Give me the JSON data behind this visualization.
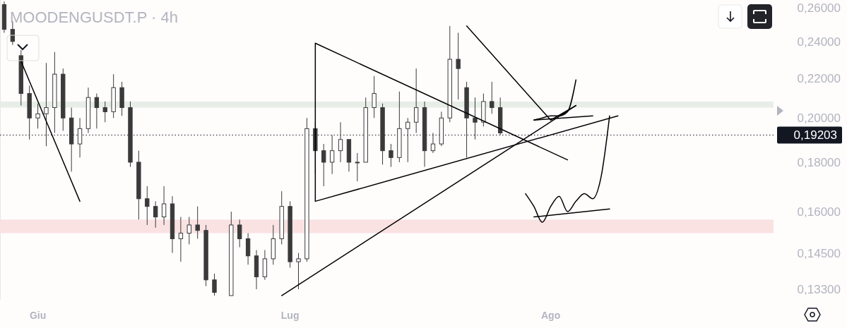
{
  "chart_data": {
    "type": "candlestick",
    "title": "MOODENGUSDT.P · 4h",
    "log": true,
    "grid": false,
    "categories": [
      null,
      null,
      null,
      null,
      "Giu",
      null,
      null,
      null,
      null,
      null,
      null,
      null,
      null,
      null,
      null,
      null,
      null,
      null,
      null,
      null,
      null,
      null,
      null,
      null,
      null,
      null,
      null,
      null,
      null,
      null,
      null,
      null,
      null,
      null,
      "Lug",
      null,
      null,
      null,
      null,
      null,
      null,
      null,
      null,
      null,
      null,
      null,
      null,
      null,
      null,
      null,
      null,
      null,
      null,
      null,
      null,
      null,
      null,
      null,
      null,
      null,
      null,
      null,
      null,
      null,
      null,
      "Ago",
      null,
      null,
      null,
      null,
      null,
      null,
      null,
      null,
      null,
      null,
      null,
      null,
      null,
      null,
      null,
      null,
      null,
      null,
      null,
      null,
      null,
      null,
      null,
      null,
      null,
      null
    ],
    "ylim": [
      0.1297,
      0.2649
    ],
    "yticks": [
      {
        "value": 0.133,
        "label": "0,13300"
      },
      {
        "value": 0.145,
        "label": "0,14500"
      },
      {
        "value": 0.16,
        "label": "0,16000"
      },
      {
        "value": 0.18,
        "label": "0,18000"
      },
      {
        "value": 0.2,
        "label": "0,20000"
      },
      {
        "value": 0.22,
        "label": "0,22000"
      },
      {
        "value": 0.24,
        "label": "0,24000"
      },
      {
        "value": 0.26,
        "label": "0,26000"
      }
    ],
    "series": [
      {
        "color": "#3a3a3a",
        "ohlc": [
          [
            0.262,
            0.264,
            0.245,
            0.247
          ],
          [
            0.247,
            0.252,
            0.238,
            0.24
          ],
          [
            0.232,
            0.235,
            0.206,
            0.212
          ],
          [
            0.212,
            0.216,
            0.19,
            0.2
          ],
          [
            0.2,
            0.207,
            0.195,
            0.202
          ],
          [
            0.202,
            0.228,
            0.187,
            0.205
          ],
          [
            0.205,
            0.234,
            0.193,
            0.222
          ],
          [
            0.222,
            0.225,
            0.194,
            0.2
          ],
          [
            0.2,
            0.205,
            0.176,
            0.188
          ],
          [
            0.188,
            0.2,
            0.182,
            0.195
          ],
          [
            0.195,
            0.215,
            0.193,
            0.21
          ],
          [
            0.21,
            0.212,
            0.195,
            0.205
          ],
          [
            0.205,
            0.208,
            0.198,
            0.203
          ],
          [
            0.203,
            0.222,
            0.2,
            0.215
          ],
          [
            0.215,
            0.218,
            0.201,
            0.205
          ],
          [
            0.205,
            0.208,
            0.178,
            0.18
          ],
          [
            0.18,
            0.185,
            0.157,
            0.165
          ],
          [
            0.165,
            0.17,
            0.155,
            0.162
          ],
          [
            0.162,
            0.164,
            0.154,
            0.158
          ],
          [
            0.158,
            0.17,
            0.155,
            0.163
          ],
          [
            0.163,
            0.166,
            0.145,
            0.15
          ],
          [
            0.15,
            0.158,
            0.142,
            0.152
          ],
          [
            0.152,
            0.158,
            0.148,
            0.155
          ],
          [
            0.155,
            0.162,
            0.15,
            0.153
          ],
          [
            0.153,
            0.155,
            0.134,
            0.136
          ],
          [
            0.136,
            0.138,
            0.131,
            0.132
          ],
          null,
          [
            0.131,
            0.16,
            0.131,
            0.155
          ],
          [
            0.155,
            0.157,
            0.147,
            0.15
          ],
          [
            0.15,
            0.152,
            0.141,
            0.144
          ],
          [
            0.144,
            0.146,
            0.133,
            0.137
          ],
          [
            0.137,
            0.146,
            0.136,
            0.143
          ],
          [
            0.143,
            0.155,
            0.141,
            0.15
          ],
          [
            0.15,
            0.168,
            0.148,
            0.162
          ],
          [
            0.162,
            0.164,
            0.14,
            0.142
          ],
          [
            0.142,
            0.145,
            0.133,
            0.143
          ],
          [
            0.143,
            0.2,
            0.142,
            0.195
          ],
          [
            0.195,
            0.198,
            0.175,
            0.185
          ],
          [
            0.185,
            0.188,
            0.17,
            0.18
          ],
          [
            0.18,
            0.192,
            0.175,
            0.185
          ],
          [
            0.185,
            0.198,
            0.18,
            0.19
          ],
          [
            0.19,
            0.19,
            0.176,
            0.18
          ],
          [
            0.18,
            0.184,
            0.172,
            0.18
          ],
          [
            0.18,
            0.21,
            0.18,
            0.205
          ],
          [
            0.205,
            0.221,
            0.2,
            0.212
          ],
          [
            0.205,
            0.207,
            0.179,
            0.185
          ],
          [
            0.185,
            0.188,
            0.178,
            0.182
          ],
          [
            0.182,
            0.213,
            0.18,
            0.195
          ],
          [
            0.195,
            0.2,
            0.18,
            0.198
          ],
          [
            0.198,
            0.225,
            0.193,
            0.205
          ],
          [
            0.205,
            0.208,
            0.178,
            0.185
          ],
          [
            0.185,
            0.193,
            0.184,
            0.188
          ],
          [
            0.188,
            0.203,
            0.187,
            0.2
          ],
          [
            0.2,
            0.249,
            0.198,
            0.23
          ],
          [
            0.23,
            0.245,
            0.209,
            0.225
          ],
          [
            0.215,
            0.218,
            0.182,
            0.2
          ],
          [
            0.2,
            0.21,
            0.19,
            0.198
          ],
          [
            0.198,
            0.212,
            0.196,
            0.208
          ],
          [
            0.208,
            0.218,
            0.202,
            0.205
          ],
          [
            0.205,
            0.21,
            0.192,
            0.193
          ],
          null,
          null,
          null,
          null,
          null,
          null,
          null,
          null,
          null,
          null,
          null,
          null,
          null,
          null,
          null,
          null,
          null,
          null,
          null,
          null,
          null,
          null,
          null,
          null,
          null,
          null,
          null,
          null,
          null,
          null,
          null,
          null
        ]
      },
      {
        "type": "line",
        "color": "#000000",
        "values": [
          null,
          null,
          0.229,
          null,
          null,
          null,
          null,
          null,
          null,
          0.164,
          null,
          null,
          null,
          null,
          null,
          null,
          null,
          null,
          null,
          null,
          null,
          null,
          null,
          null,
          null,
          null,
          null,
          null,
          null,
          null,
          null,
          null,
          null,
          null,
          null,
          null,
          null,
          null,
          null,
          null,
          null,
          null,
          null,
          null,
          null,
          null,
          null,
          null,
          null,
          null,
          null,
          null,
          null,
          null,
          null,
          null,
          null,
          null,
          null,
          null,
          null,
          null,
          null,
          null,
          null,
          null,
          null,
          null,
          null,
          null,
          null,
          null,
          null,
          null,
          null,
          null,
          null,
          null,
          null,
          null,
          null,
          null,
          null,
          null,
          null,
          null,
          null,
          null,
          null,
          null,
          null,
          null
        ]
      },
      {
        "type": "line",
        "color": "#000000",
        "values": [
          null,
          null,
          null,
          null,
          null,
          null,
          null,
          null,
          null,
          null,
          null,
          null,
          null,
          null,
          null,
          null,
          null,
          null,
          null,
          null,
          null,
          null,
          null,
          null,
          null,
          null,
          null,
          null,
          null,
          null,
          null,
          null,
          null,
          null,
          null,
          null,
          null,
          0.239,
          null,
          null,
          null,
          null,
          null,
          null,
          null,
          null,
          null,
          null,
          null,
          null,
          null,
          null,
          null,
          null,
          null,
          null,
          null,
          null,
          null,
          null,
          null,
          null,
          null,
          null,
          null,
          null,
          null,
          0.181,
          null,
          null,
          null,
          null,
          null,
          null,
          null,
          null,
          null,
          null,
          null,
          null,
          null,
          null,
          null,
          null,
          null,
          null,
          null,
          null,
          null,
          null,
          null,
          null
        ]
      },
      {
        "type": "line",
        "color": "#000000",
        "values": [
          null,
          null,
          null,
          null,
          null,
          null,
          null,
          null,
          null,
          null,
          null,
          null,
          null,
          null,
          null,
          null,
          null,
          null,
          null,
          null,
          null,
          null,
          null,
          null,
          null,
          null,
          null,
          null,
          null,
          null,
          null,
          null,
          null,
          null,
          null,
          null,
          null,
          0.164,
          null,
          null,
          null,
          null,
          null,
          null,
          null,
          null,
          null,
          null,
          null,
          null,
          null,
          null,
          null,
          null,
          null,
          null,
          null,
          null,
          null,
          null,
          null,
          null,
          null,
          null,
          null,
          null,
          null,
          null,
          null,
          null,
          null,
          null,
          null,
          0.201,
          null,
          null,
          null,
          null,
          null,
          null,
          null,
          null,
          null,
          null,
          null,
          null,
          null,
          null,
          null,
          null,
          null,
          null
        ]
      },
      {
        "type": "line",
        "color": "#000000",
        "values": [
          null,
          null,
          null,
          null,
          null,
          null,
          null,
          null,
          null,
          null,
          null,
          null,
          null,
          null,
          null,
          null,
          null,
          null,
          null,
          null,
          null,
          null,
          null,
          null,
          null,
          null,
          null,
          null,
          null,
          null,
          null,
          null,
          null,
          0.131,
          null,
          null,
          null,
          null,
          null,
          null,
          null,
          null,
          null,
          null,
          null,
          null,
          null,
          null,
          null,
          null,
          null,
          null,
          null,
          null,
          null,
          null,
          null,
          null,
          null,
          null,
          null,
          null,
          null,
          null,
          null,
          null,
          null,
          null,
          0.206,
          null,
          null,
          null,
          null,
          null,
          null,
          null,
          null,
          null,
          null,
          null,
          null,
          null,
          null,
          null,
          null,
          null,
          null,
          null,
          null,
          null,
          null,
          null
        ]
      },
      {
        "type": "line",
        "color": "#000000",
        "values": [
          null,
          null,
          null,
          null,
          null,
          null,
          null,
          null,
          null,
          null,
          null,
          null,
          null,
          null,
          null,
          null,
          null,
          null,
          null,
          null,
          null,
          null,
          null,
          null,
          null,
          null,
          null,
          null,
          null,
          null,
          null,
          null,
          null,
          null,
          null,
          null,
          null,
          null,
          null,
          null,
          null,
          null,
          null,
          null,
          null,
          null,
          null,
          null,
          null,
          null,
          null,
          null,
          null,
          null,
          null,
          0.249,
          null,
          null,
          null,
          null,
          null,
          null,
          null,
          null,
          null,
          0.199,
          null,
          null,
          null,
          null,
          null,
          null,
          null,
          null,
          null,
          null,
          null,
          null,
          null,
          null,
          null,
          null,
          null,
          null,
          null,
          null,
          null,
          null,
          null,
          null,
          null,
          null
        ]
      },
      {
        "type": "line",
        "color": "#000000",
        "values": [
          null,
          null,
          null,
          null,
          null,
          null,
          null,
          null,
          null,
          null,
          null,
          null,
          null,
          null,
          null,
          null,
          null,
          null,
          null,
          null,
          null,
          null,
          null,
          null,
          null,
          null,
          null,
          null,
          null,
          null,
          null,
          null,
          null,
          null,
          null,
          null,
          null,
          null,
          null,
          null,
          null,
          null,
          null,
          null,
          null,
          null,
          null,
          null,
          null,
          null,
          null,
          null,
          null,
          null,
          null,
          null,
          null,
          null,
          null,
          null,
          null,
          null,
          null,
          0.199,
          null,
          null,
          null,
          null,
          null,
          null,
          0.201,
          null,
          null,
          null,
          null,
          null,
          null,
          null,
          null,
          null,
          null,
          null,
          null,
          null,
          null,
          null,
          null,
          null,
          null,
          null,
          null,
          null
        ]
      },
      {
        "type": "line",
        "color": "#000000",
        "values": [
          null,
          null,
          null,
          null,
          null,
          null,
          null,
          null,
          null,
          null,
          null,
          null,
          null,
          null,
          null,
          null,
          null,
          null,
          null,
          null,
          null,
          null,
          null,
          null,
          null,
          null,
          null,
          null,
          null,
          null,
          null,
          null,
          null,
          null,
          null,
          null,
          null,
          null,
          null,
          null,
          null,
          null,
          null,
          null,
          null,
          null,
          null,
          null,
          null,
          null,
          null,
          null,
          null,
          null,
          null,
          null,
          null,
          null,
          null,
          null,
          null,
          null,
          0.167,
          0.162,
          0.156,
          0.162,
          0.166,
          0.16,
          0.164,
          0.167,
          0.165,
          0.174,
          0.201,
          null,
          null,
          null,
          null,
          null,
          null,
          null,
          null,
          null,
          null,
          null,
          null,
          null,
          null,
          null,
          null,
          null,
          null,
          null
        ]
      },
      {
        "type": "line",
        "color": "#000000",
        "values": [
          null,
          null,
          null,
          null,
          null,
          null,
          null,
          null,
          null,
          null,
          null,
          null,
          null,
          null,
          null,
          null,
          null,
          null,
          null,
          null,
          null,
          null,
          null,
          null,
          null,
          null,
          null,
          null,
          null,
          null,
          null,
          null,
          null,
          null,
          null,
          null,
          null,
          null,
          null,
          null,
          null,
          null,
          null,
          null,
          null,
          null,
          null,
          null,
          null,
          null,
          null,
          null,
          null,
          null,
          null,
          null,
          null,
          null,
          null,
          null,
          null,
          null,
          null,
          0.158,
          null,
          null,
          null,
          null,
          null,
          null,
          null,
          null,
          0.161,
          null,
          null,
          null,
          null,
          null,
          null,
          null,
          null,
          null,
          null,
          null,
          null,
          null,
          null,
          null,
          null,
          null,
          null,
          null
        ]
      },
      {
        "type": "line",
        "color": "#000000",
        "values": [
          null,
          null,
          null,
          null,
          null,
          null,
          null,
          null,
          null,
          null,
          null,
          null,
          null,
          null,
          null,
          null,
          null,
          null,
          null,
          null,
          null,
          null,
          null,
          null,
          null,
          null,
          null,
          null,
          null,
          null,
          null,
          null,
          null,
          null,
          null,
          null,
          null,
          null,
          null,
          null,
          null,
          null,
          null,
          null,
          null,
          null,
          null,
          null,
          null,
          null,
          null,
          null,
          null,
          null,
          null,
          null,
          null,
          null,
          null,
          null,
          null,
          null,
          null,
          0.199,
          0.2,
          0.201,
          0.201,
          0.203,
          0.219,
          null,
          null,
          null,
          null,
          null,
          null,
          null,
          null,
          null,
          null,
          null,
          null,
          null,
          null,
          null,
          null,
          null,
          null,
          null,
          null,
          null,
          null,
          null
        ]
      },
      {
        "type": "line",
        "color": "#000000",
        "values": [
          null,
          null,
          null,
          null,
          null,
          null,
          null,
          null,
          null,
          null,
          null,
          null,
          null,
          null,
          null,
          null,
          null,
          null,
          null,
          null,
          null,
          null,
          null,
          null,
          null,
          null,
          null,
          null,
          null,
          null,
          null,
          null,
          null,
          null,
          null,
          null,
          null,
          null,
          null,
          null,
          null,
          null,
          null,
          null,
          null,
          null,
          null,
          null,
          null,
          null,
          null,
          null,
          null,
          null,
          null,
          null,
          null,
          null,
          null,
          null,
          null,
          null,
          null,
          null,
          null,
          0.199,
          null,
          null,
          0.206,
          null,
          null,
          null,
          null,
          null,
          null,
          null,
          null,
          null,
          null,
          null,
          null,
          null,
          null,
          null,
          null,
          null,
          null,
          null,
          null,
          null,
          null,
          null
        ]
      }
    ],
    "bands": [
      {
        "axis": "y",
        "from": 0.152,
        "to": 0.157,
        "color": "#f9dfe0"
      },
      {
        "axis": "y",
        "from": 0.205,
        "to": 0.208,
        "color": "#e3ece4"
      }
    ],
    "ref_lines": [
      {
        "axis": "y",
        "value": 0.19203,
        "label": "0,19203",
        "color": "#131722",
        "line_style": "dotted"
      }
    ]
  }
}
